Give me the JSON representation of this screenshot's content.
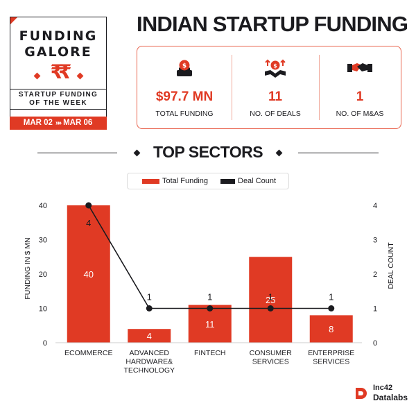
{
  "badge": {
    "title_line_1": "FUNDING",
    "title_line_2": "GALORE",
    "symbols": "₹₹",
    "subtitle_line_1": "STARTUP FUNDING",
    "subtitle_line_2": "OF THE WEEK",
    "date_start": "MAR 02",
    "date_arrows": "»»",
    "date_end": "MAR 06"
  },
  "header": {
    "title": "INDIAN STARTUP FUNDING"
  },
  "stats": [
    {
      "value": "$97.7 MN",
      "label": "TOTAL FUNDING",
      "icon": "money-bag-icon"
    },
    {
      "value": "11",
      "label": "NO. OF DEALS",
      "icon": "deal-growth-icon"
    },
    {
      "value": "1",
      "label": "NO. OF M&AS",
      "icon": "handshake-icon"
    }
  ],
  "section": {
    "title": "TOP SECTORS"
  },
  "legend": {
    "bar_label": "Total Funding",
    "line_label": "Deal Count"
  },
  "colors": {
    "accent": "#e03a24",
    "dark": "#1b1b1f",
    "box_border": "#e8624c"
  },
  "chart_data": {
    "type": "bar",
    "categories": [
      [
        "ECOMMERCE"
      ],
      [
        "ADVANCED",
        "HARDWARE&",
        "TECHNOLOGY"
      ],
      [
        "FINTECH"
      ],
      [
        "CONSUMER",
        "SERVICES"
      ],
      [
        "ENTERPRISE",
        "SERVICES"
      ]
    ],
    "series": [
      {
        "name": "Total Funding",
        "kind": "bar",
        "axis": "left",
        "values": [
          40,
          4,
          11,
          25,
          8
        ],
        "data_labels": [
          "40",
          "4",
          "11",
          "25",
          "8"
        ]
      },
      {
        "name": "Deal Count",
        "kind": "line",
        "axis": "right",
        "values": [
          4,
          1,
          1,
          1,
          1
        ],
        "data_labels": [
          "4",
          "1",
          "1",
          "1",
          "1"
        ]
      }
    ],
    "ylabel": "FUNDING IN $ MN",
    "y2label": "DEAL COUNT",
    "ylim": [
      0,
      40
    ],
    "y2lim": [
      0,
      4
    ],
    "yticks": [
      "0",
      "10",
      "20",
      "30",
      "40"
    ],
    "y2ticks": [
      "0",
      "1",
      "2",
      "3",
      "4"
    ],
    "grid": false,
    "legend_position": "top-center"
  },
  "logo": {
    "line_1": "Inc42",
    "line_2": "Datalabs"
  }
}
